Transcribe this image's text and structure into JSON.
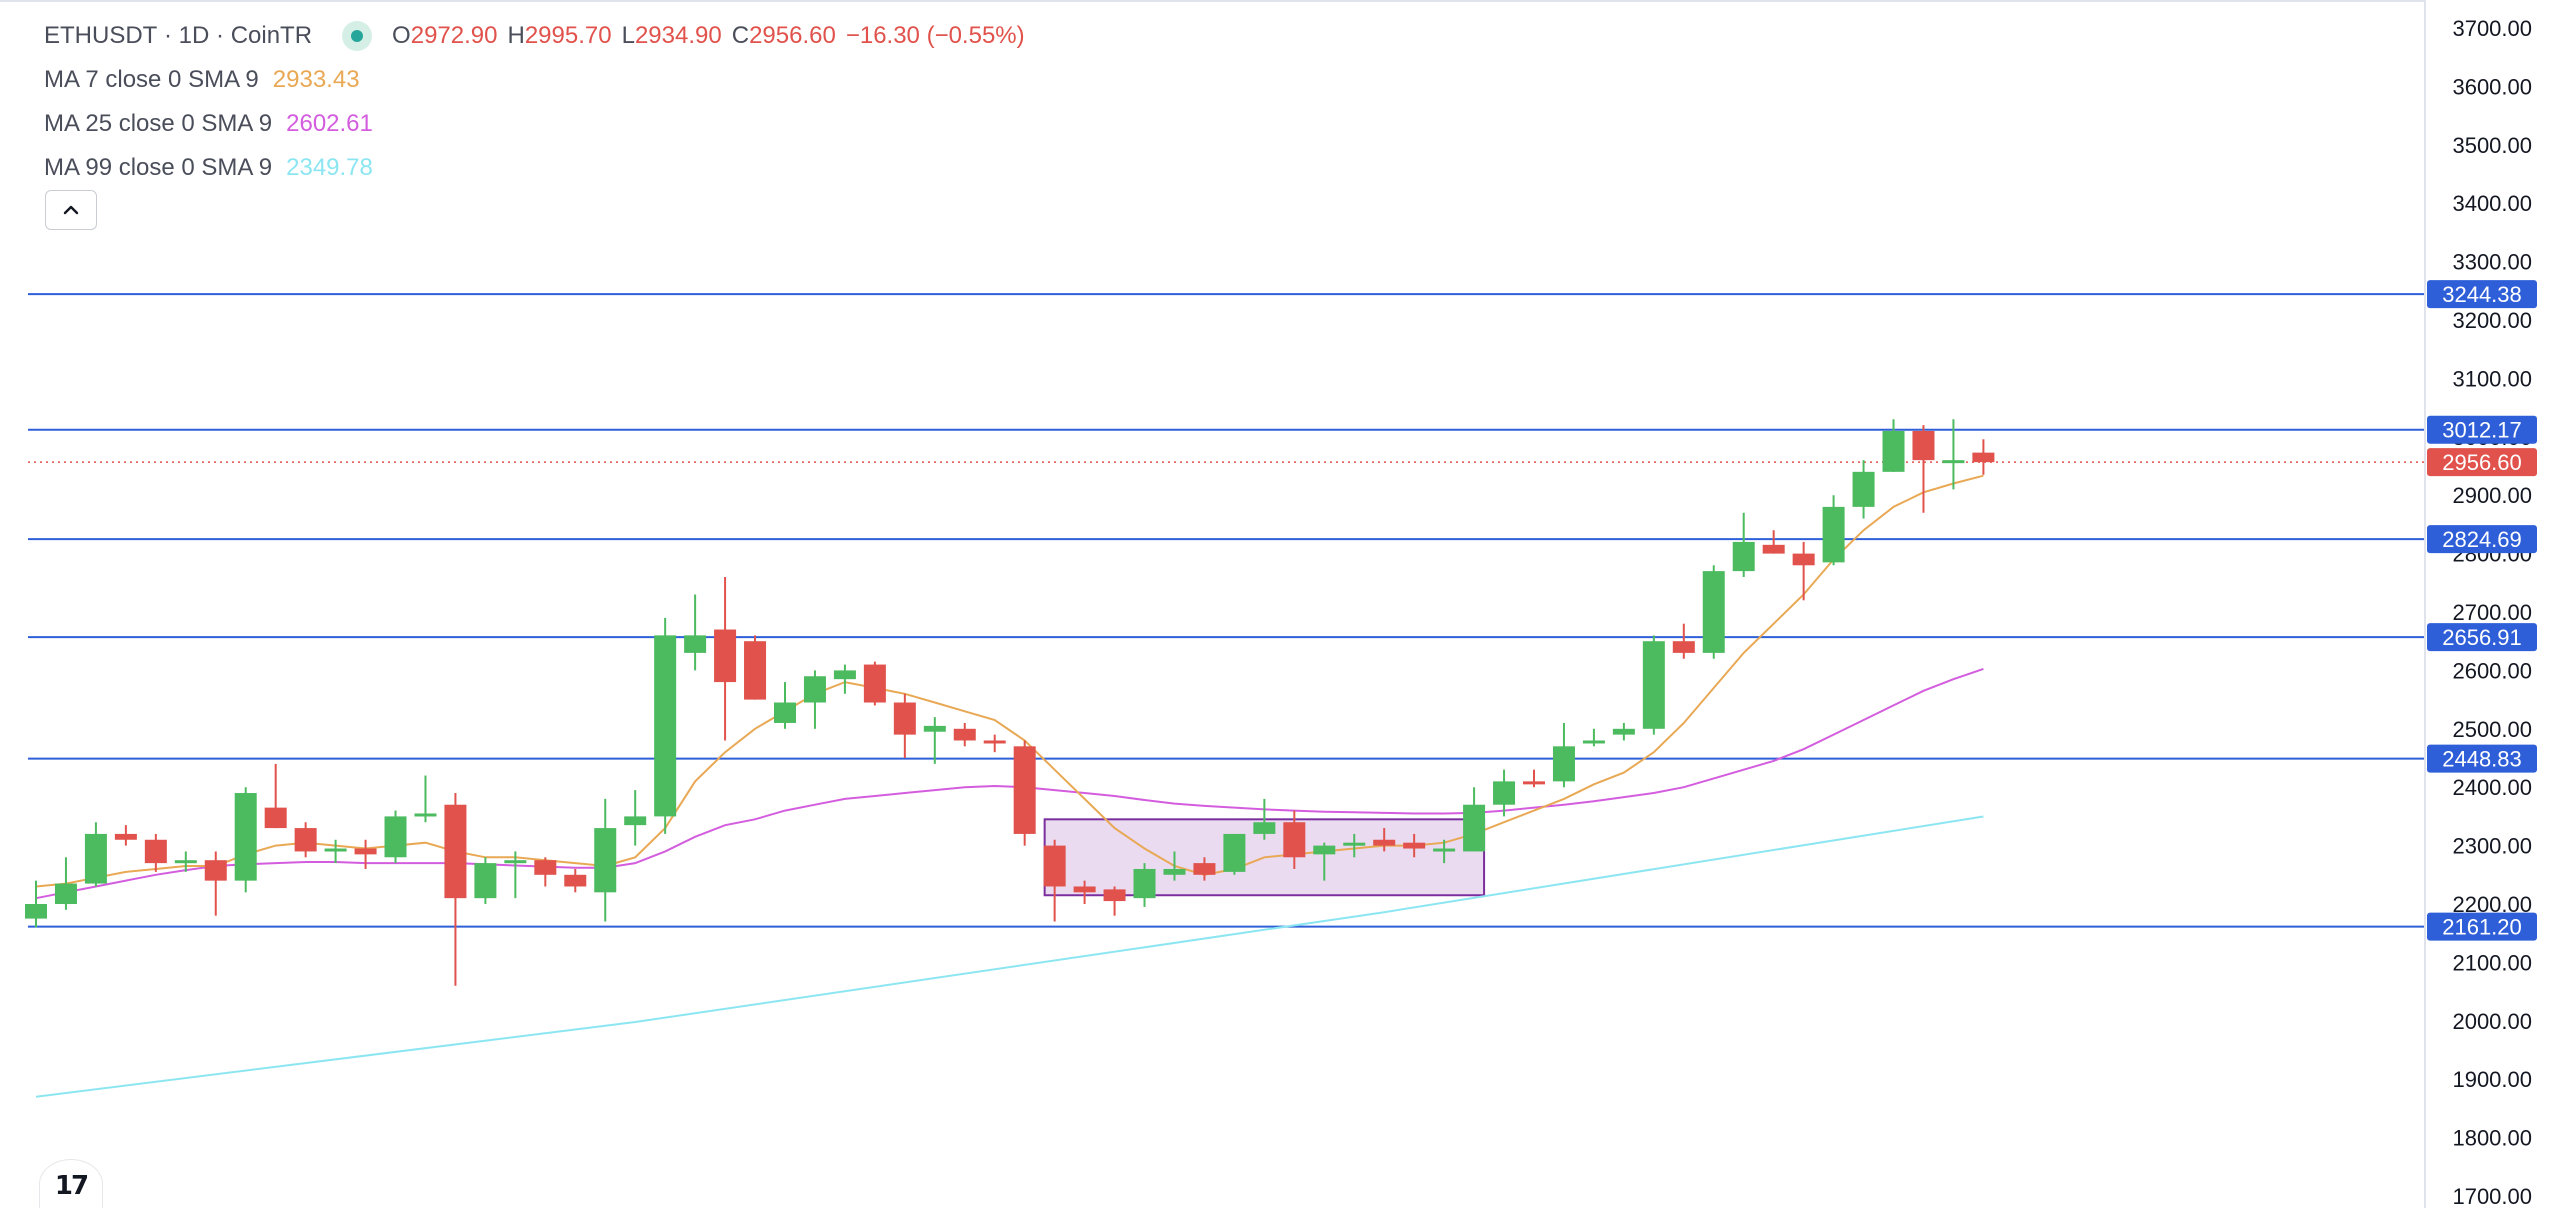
{
  "header": {
    "symbol": "ETHUSDT",
    "interval": "1D",
    "exchange": "CoinTR",
    "ohlc": [
      {
        "key": "O",
        "value": "2972.90"
      },
      {
        "key": "H",
        "value": "2995.70"
      },
      {
        "key": "L",
        "value": "2934.90"
      },
      {
        "key": "C",
        "value": "2956.60"
      }
    ],
    "change": "−16.30 (−0.55%)"
  },
  "indicators": [
    {
      "label": "MA 7 close 0 SMA 9",
      "value": "2933.43",
      "color": "#e8a854"
    },
    {
      "label": "MA 25 close 0 SMA 9",
      "value": "2602.61",
      "color": "#d35dde"
    },
    {
      "label": "MA 99 close 0 SMA 9",
      "value": "2349.78",
      "color": "#8ce6f2"
    }
  ],
  "colors": {
    "up": "#4cbb5f",
    "down": "#e0524b",
    "level_line": "#2f5fd8",
    "price_tag": "#e0524b",
    "box_fill": "#e8d5ee",
    "box_stroke": "#7b2f9e"
  },
  "icons": {
    "collapse": "chevron-up-icon",
    "logo": "tradingview-logo"
  },
  "chart_data": {
    "type": "candlestick",
    "y_axis": {
      "position": "right",
      "range": [
        1700,
        3700
      ],
      "ticks": [
        "3700.00",
        "3600.00",
        "3500.00",
        "3400.00",
        "3300.00",
        "3200.00",
        "3100.00",
        "3000.00",
        "2900.00",
        "2800.00",
        "2700.00",
        "2600.00",
        "2500.00",
        "2400.00",
        "2300.00",
        "2200.00",
        "2100.00",
        "2000.00",
        "1900.00",
        "1800.00",
        "1700.00"
      ]
    },
    "candles": [
      [
        2175,
        2240,
        2160,
        2200
      ],
      [
        2200,
        2280,
        2190,
        2235
      ],
      [
        2235,
        2340,
        2230,
        2320
      ],
      [
        2320,
        2335,
        2300,
        2310
      ],
      [
        2310,
        2320,
        2255,
        2270
      ],
      [
        2270,
        2290,
        2255,
        2275
      ],
      [
        2275,
        2290,
        2180,
        2240
      ],
      [
        2240,
        2400,
        2220,
        2390
      ],
      [
        2365,
        2440,
        2330,
        2330
      ],
      [
        2330,
        2340,
        2280,
        2290
      ],
      [
        2290,
        2310,
        2270,
        2295
      ],
      [
        2295,
        2310,
        2260,
        2285
      ],
      [
        2280,
        2360,
        2270,
        2350
      ],
      [
        2350,
        2420,
        2340,
        2355
      ],
      [
        2370,
        2390,
        2060,
        2210
      ],
      [
        2210,
        2280,
        2200,
        2270
      ],
      [
        2270,
        2290,
        2210,
        2275
      ],
      [
        2275,
        2280,
        2230,
        2250
      ],
      [
        2250,
        2260,
        2220,
        2230
      ],
      [
        2220,
        2380,
        2170,
        2330
      ],
      [
        2335,
        2395,
        2300,
        2350
      ],
      [
        2350,
        2690,
        2320,
        2660
      ],
      [
        2630,
        2730,
        2600,
        2660
      ],
      [
        2670,
        2760,
        2480,
        2580
      ],
      [
        2650,
        2660,
        2550,
        2550
      ],
      [
        2510,
        2580,
        2500,
        2545
      ],
      [
        2545,
        2600,
        2500,
        2590
      ],
      [
        2585,
        2610,
        2560,
        2600
      ],
      [
        2610,
        2615,
        2540,
        2545
      ],
      [
        2545,
        2560,
        2450,
        2490
      ],
      [
        2495,
        2520,
        2440,
        2505
      ],
      [
        2500,
        2510,
        2470,
        2480
      ],
      [
        2480,
        2490,
        2460,
        2475
      ],
      [
        2470,
        2480,
        2300,
        2320
      ],
      [
        2300,
        2310,
        2170,
        2230
      ],
      [
        2230,
        2240,
        2200,
        2220
      ],
      [
        2225,
        2230,
        2180,
        2205
      ],
      [
        2210,
        2270,
        2195,
        2260
      ],
      [
        2250,
        2290,
        2240,
        2260
      ],
      [
        2270,
        2280,
        2240,
        2250
      ],
      [
        2255,
        2320,
        2250,
        2320
      ],
      [
        2320,
        2380,
        2310,
        2340
      ],
      [
        2340,
        2360,
        2260,
        2280
      ],
      [
        2285,
        2305,
        2240,
        2300
      ],
      [
        2300,
        2320,
        2280,
        2305
      ],
      [
        2310,
        2330,
        2290,
        2300
      ],
      [
        2305,
        2320,
        2280,
        2295
      ],
      [
        2290,
        2310,
        2270,
        2295
      ],
      [
        2290,
        2400,
        2290,
        2370
      ],
      [
        2370,
        2430,
        2350,
        2410
      ],
      [
        2410,
        2430,
        2400,
        2405
      ],
      [
        2410,
        2510,
        2400,
        2470
      ],
      [
        2475,
        2500,
        2470,
        2480
      ],
      [
        2490,
        2510,
        2480,
        2500
      ],
      [
        2500,
        2660,
        2490,
        2650
      ],
      [
        2650,
        2680,
        2620,
        2630
      ],
      [
        2630,
        2780,
        2620,
        2770
      ],
      [
        2770,
        2870,
        2760,
        2820
      ],
      [
        2815,
        2840,
        2800,
        2800
      ],
      [
        2800,
        2820,
        2720,
        2780
      ],
      [
        2785,
        2900,
        2780,
        2880
      ],
      [
        2880,
        2960,
        2860,
        2940
      ],
      [
        2940,
        3030,
        2940,
        3010
      ],
      [
        3010,
        3020,
        2870,
        2960
      ],
      [
        2960,
        3030,
        2910,
        2960
      ],
      [
        2972.9,
        2995.7,
        2934.9,
        2956.6
      ]
    ],
    "ma7": [
      2230,
      2235,
      2245,
      2255,
      2260,
      2265,
      2265,
      2285,
      2300,
      2305,
      2300,
      2295,
      2300,
      2305,
      2290,
      2280,
      2280,
      2275,
      2270,
      2265,
      2280,
      2330,
      2410,
      2460,
      2500,
      2530,
      2560,
      2580,
      2570,
      2560,
      2545,
      2530,
      2515,
      2480,
      2430,
      2380,
      2330,
      2295,
      2265,
      2250,
      2260,
      2280,
      2285,
      2290,
      2295,
      2300,
      2300,
      2305,
      2320,
      2340,
      2360,
      2380,
      2405,
      2425,
      2460,
      2510,
      2570,
      2630,
      2680,
      2730,
      2790,
      2840,
      2880,
      2905,
      2920,
      2933.43
    ],
    "ma25": [
      2210,
      2220,
      2230,
      2240,
      2250,
      2258,
      2265,
      2268,
      2270,
      2272,
      2272,
      2270,
      2270,
      2270,
      2270,
      2268,
      2266,
      2264,
      2262,
      2262,
      2270,
      2290,
      2315,
      2335,
      2345,
      2360,
      2370,
      2380,
      2385,
      2390,
      2395,
      2400,
      2402,
      2400,
      2395,
      2390,
      2385,
      2378,
      2372,
      2368,
      2365,
      2362,
      2360,
      2358,
      2357,
      2356,
      2355,
      2355,
      2356,
      2360,
      2365,
      2370,
      2376,
      2383,
      2390,
      2400,
      2415,
      2430,
      2445,
      2465,
      2490,
      2515,
      2540,
      2565,
      2585,
      2602.61
    ],
    "ma99_points": [
      [
        0,
        1870
      ],
      [
        20,
        1998
      ],
      [
        45,
        2186
      ],
      [
        65,
        2349.78
      ]
    ],
    "levels": [
      {
        "price": 3244.38,
        "label": "3244.38"
      },
      {
        "price": 3012.17,
        "label": "3012.17"
      },
      {
        "price": 2824.69,
        "label": "2824.69"
      },
      {
        "price": 2656.91,
        "label": "2656.91"
      },
      {
        "price": 2448.83,
        "label": "2448.83"
      },
      {
        "price": 2161.2,
        "label": "2161.20"
      }
    ],
    "last_price": {
      "price": 2956.6,
      "label": "2956.60"
    },
    "range_box": {
      "start_candle": 34,
      "end_candle": 48,
      "top": 2345,
      "bottom": 2215
    }
  }
}
